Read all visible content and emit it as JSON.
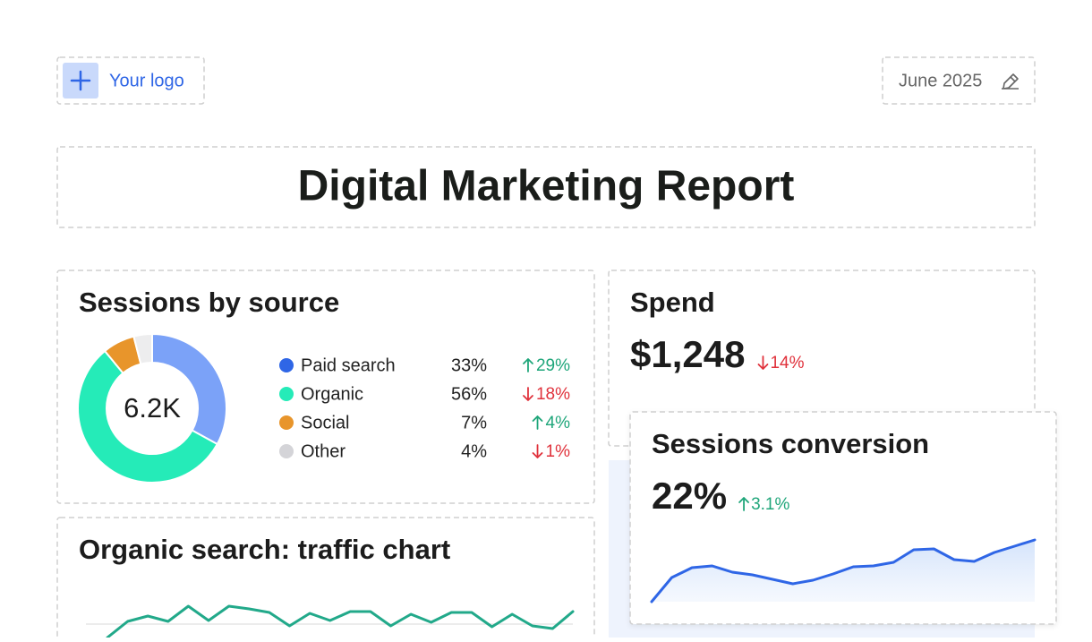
{
  "header": {
    "logo_text": "Your logo",
    "date": "June 2025"
  },
  "title": "Digital Marketing Report",
  "sessions_by_source": {
    "title": "Sessions by source",
    "total": "6.2K",
    "chart_data": {
      "type": "pie",
      "categories": [
        "Paid search",
        "Organic",
        "Social",
        "Other"
      ],
      "values": [
        33,
        56,
        7,
        4
      ],
      "value_labels": [
        "33%",
        "56%",
        "7%",
        "4%"
      ],
      "colors": [
        "#7ba2f8",
        "#25ebb8",
        "#e8952b",
        "#ededee"
      ],
      "legend_colors": [
        "#2f66e6",
        "#25ebb8",
        "#e8952b",
        "#d4d4d8"
      ],
      "changes": [
        "29%",
        "18%",
        "4%",
        "1%"
      ],
      "change_directions": [
        "up",
        "down",
        "up",
        "down"
      ]
    }
  },
  "spend": {
    "title": "Spend",
    "value": "$1,248",
    "change": "14%",
    "direction": "down"
  },
  "sessions_conversion": {
    "title": "Sessions conversion",
    "value": "22%",
    "change": "3.1%",
    "direction": "up",
    "chart_data": {
      "type": "area",
      "values": [
        0,
        27,
        38,
        40,
        33,
        30,
        25,
        20,
        24,
        31,
        39,
        40,
        44,
        58,
        59,
        47,
        45,
        55,
        62,
        69
      ],
      "ylim": [
        0,
        72
      ],
      "color": "#2f66e6"
    }
  },
  "organic_search": {
    "title": "Organic search: traffic chart",
    "chart_data": {
      "type": "line",
      "values": [
        0,
        18,
        24,
        18,
        35,
        19,
        35,
        32,
        28,
        13,
        27,
        19,
        29,
        29,
        13,
        26,
        17,
        28,
        28,
        12,
        26,
        13,
        10,
        29
      ],
      "ylim": [
        0,
        40
      ],
      "color": "#22a98a"
    }
  }
}
